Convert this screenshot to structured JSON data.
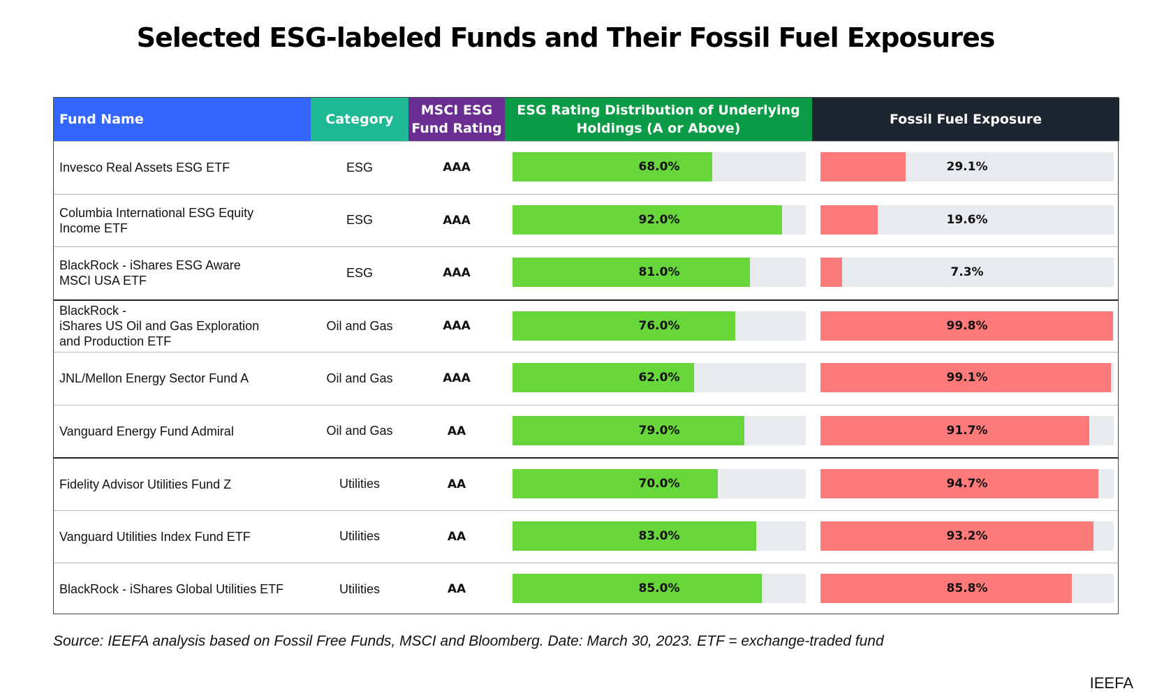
{
  "title": "Selected ESG-labeled Funds and Their Fossil Fuel Exposures",
  "headers": {
    "fund": "Fund Name",
    "category": "Category",
    "msci": "MSCI ESG Fund Rating",
    "esg": "ESG Rating Distribution of Underlying Holdings (A or Above)",
    "fossil": "Fossil Fuel Exposure"
  },
  "rows": [
    {
      "fund": "Invesco Real Assets ESG ETF",
      "category": "ESG",
      "msci": "AAA",
      "esg_label": "68.0%",
      "fossil_label": "29.1%"
    },
    {
      "fund": "Columbia International ESG Equity\nIncome ETF",
      "category": "ESG",
      "msci": "AAA",
      "esg_label": "92.0%",
      "fossil_label": "19.6%"
    },
    {
      "fund": "BlackRock - iShares ESG Aware\nMSCI USA ETF",
      "category": "ESG",
      "msci": "AAA",
      "esg_label": "81.0%",
      "fossil_label": "7.3%"
    },
    {
      "fund": "BlackRock -\niShares US Oil and Gas Exploration\nand Production ETF",
      "category": "Oil and Gas",
      "msci": "AAA",
      "esg_label": "76.0%",
      "fossil_label": "99.8%"
    },
    {
      "fund": "JNL/Mellon Energy Sector Fund A",
      "category": "Oil and Gas",
      "msci": "AAA",
      "esg_label": "62.0%",
      "fossil_label": "99.1%"
    },
    {
      "fund": "Vanguard Energy Fund Admiral",
      "category": "Oil and Gas",
      "msci": "AA",
      "esg_label": "79.0%",
      "fossil_label": "91.7%"
    },
    {
      "fund": "Fidelity Advisor Utilities Fund Z",
      "category": "Utilities",
      "msci": "AA",
      "esg_label": "70.0%",
      "fossil_label": "94.7%"
    },
    {
      "fund": "Vanguard Utilities Index Fund ETF",
      "category": "Utilities",
      "msci": "AA",
      "esg_label": "83.0%",
      "fossil_label": "93.2%"
    },
    {
      "fund": "BlackRock - iShares Global Utilities ETF",
      "category": "Utilities",
      "msci": "AA",
      "esg_label": "85.0%",
      "fossil_label": "85.8%"
    }
  ],
  "chart_data": {
    "type": "bar",
    "categories": [
      "Invesco Real Assets ESG ETF",
      "Columbia International ESG Equity Income ETF",
      "BlackRock - iShares ESG Aware MSCI USA ETF",
      "BlackRock - iShares US Oil and Gas Exploration and Production ETF",
      "JNL/Mellon Energy Sector Fund A",
      "Vanguard Energy Fund Admiral",
      "Fidelity Advisor Utilities Fund Z",
      "Vanguard Utilities Index Fund ETF",
      "BlackRock - iShares Global Utilities ETF"
    ],
    "series": [
      {
        "name": "ESG Rating Distribution of Underlying Holdings (A or Above)",
        "values": [
          68.0,
          92.0,
          81.0,
          76.0,
          62.0,
          79.0,
          70.0,
          83.0,
          85.0
        ]
      },
      {
        "name": "Fossil Fuel Exposure",
        "values": [
          29.1,
          19.6,
          7.3,
          99.8,
          99.1,
          91.7,
          94.7,
          93.2,
          85.8
        ]
      }
    ],
    "ylim": [
      0,
      100
    ],
    "colors": {
      "esg": "#66d63a",
      "fossil": "#ff7b7b",
      "track": "#e8ebee"
    }
  },
  "source": "Source: IEEFA analysis based on Fossil Free Funds, MSCI and Bloomberg. Date: March 30, 2023. ETF = exchange-traded fund",
  "brand": "IEEFA"
}
